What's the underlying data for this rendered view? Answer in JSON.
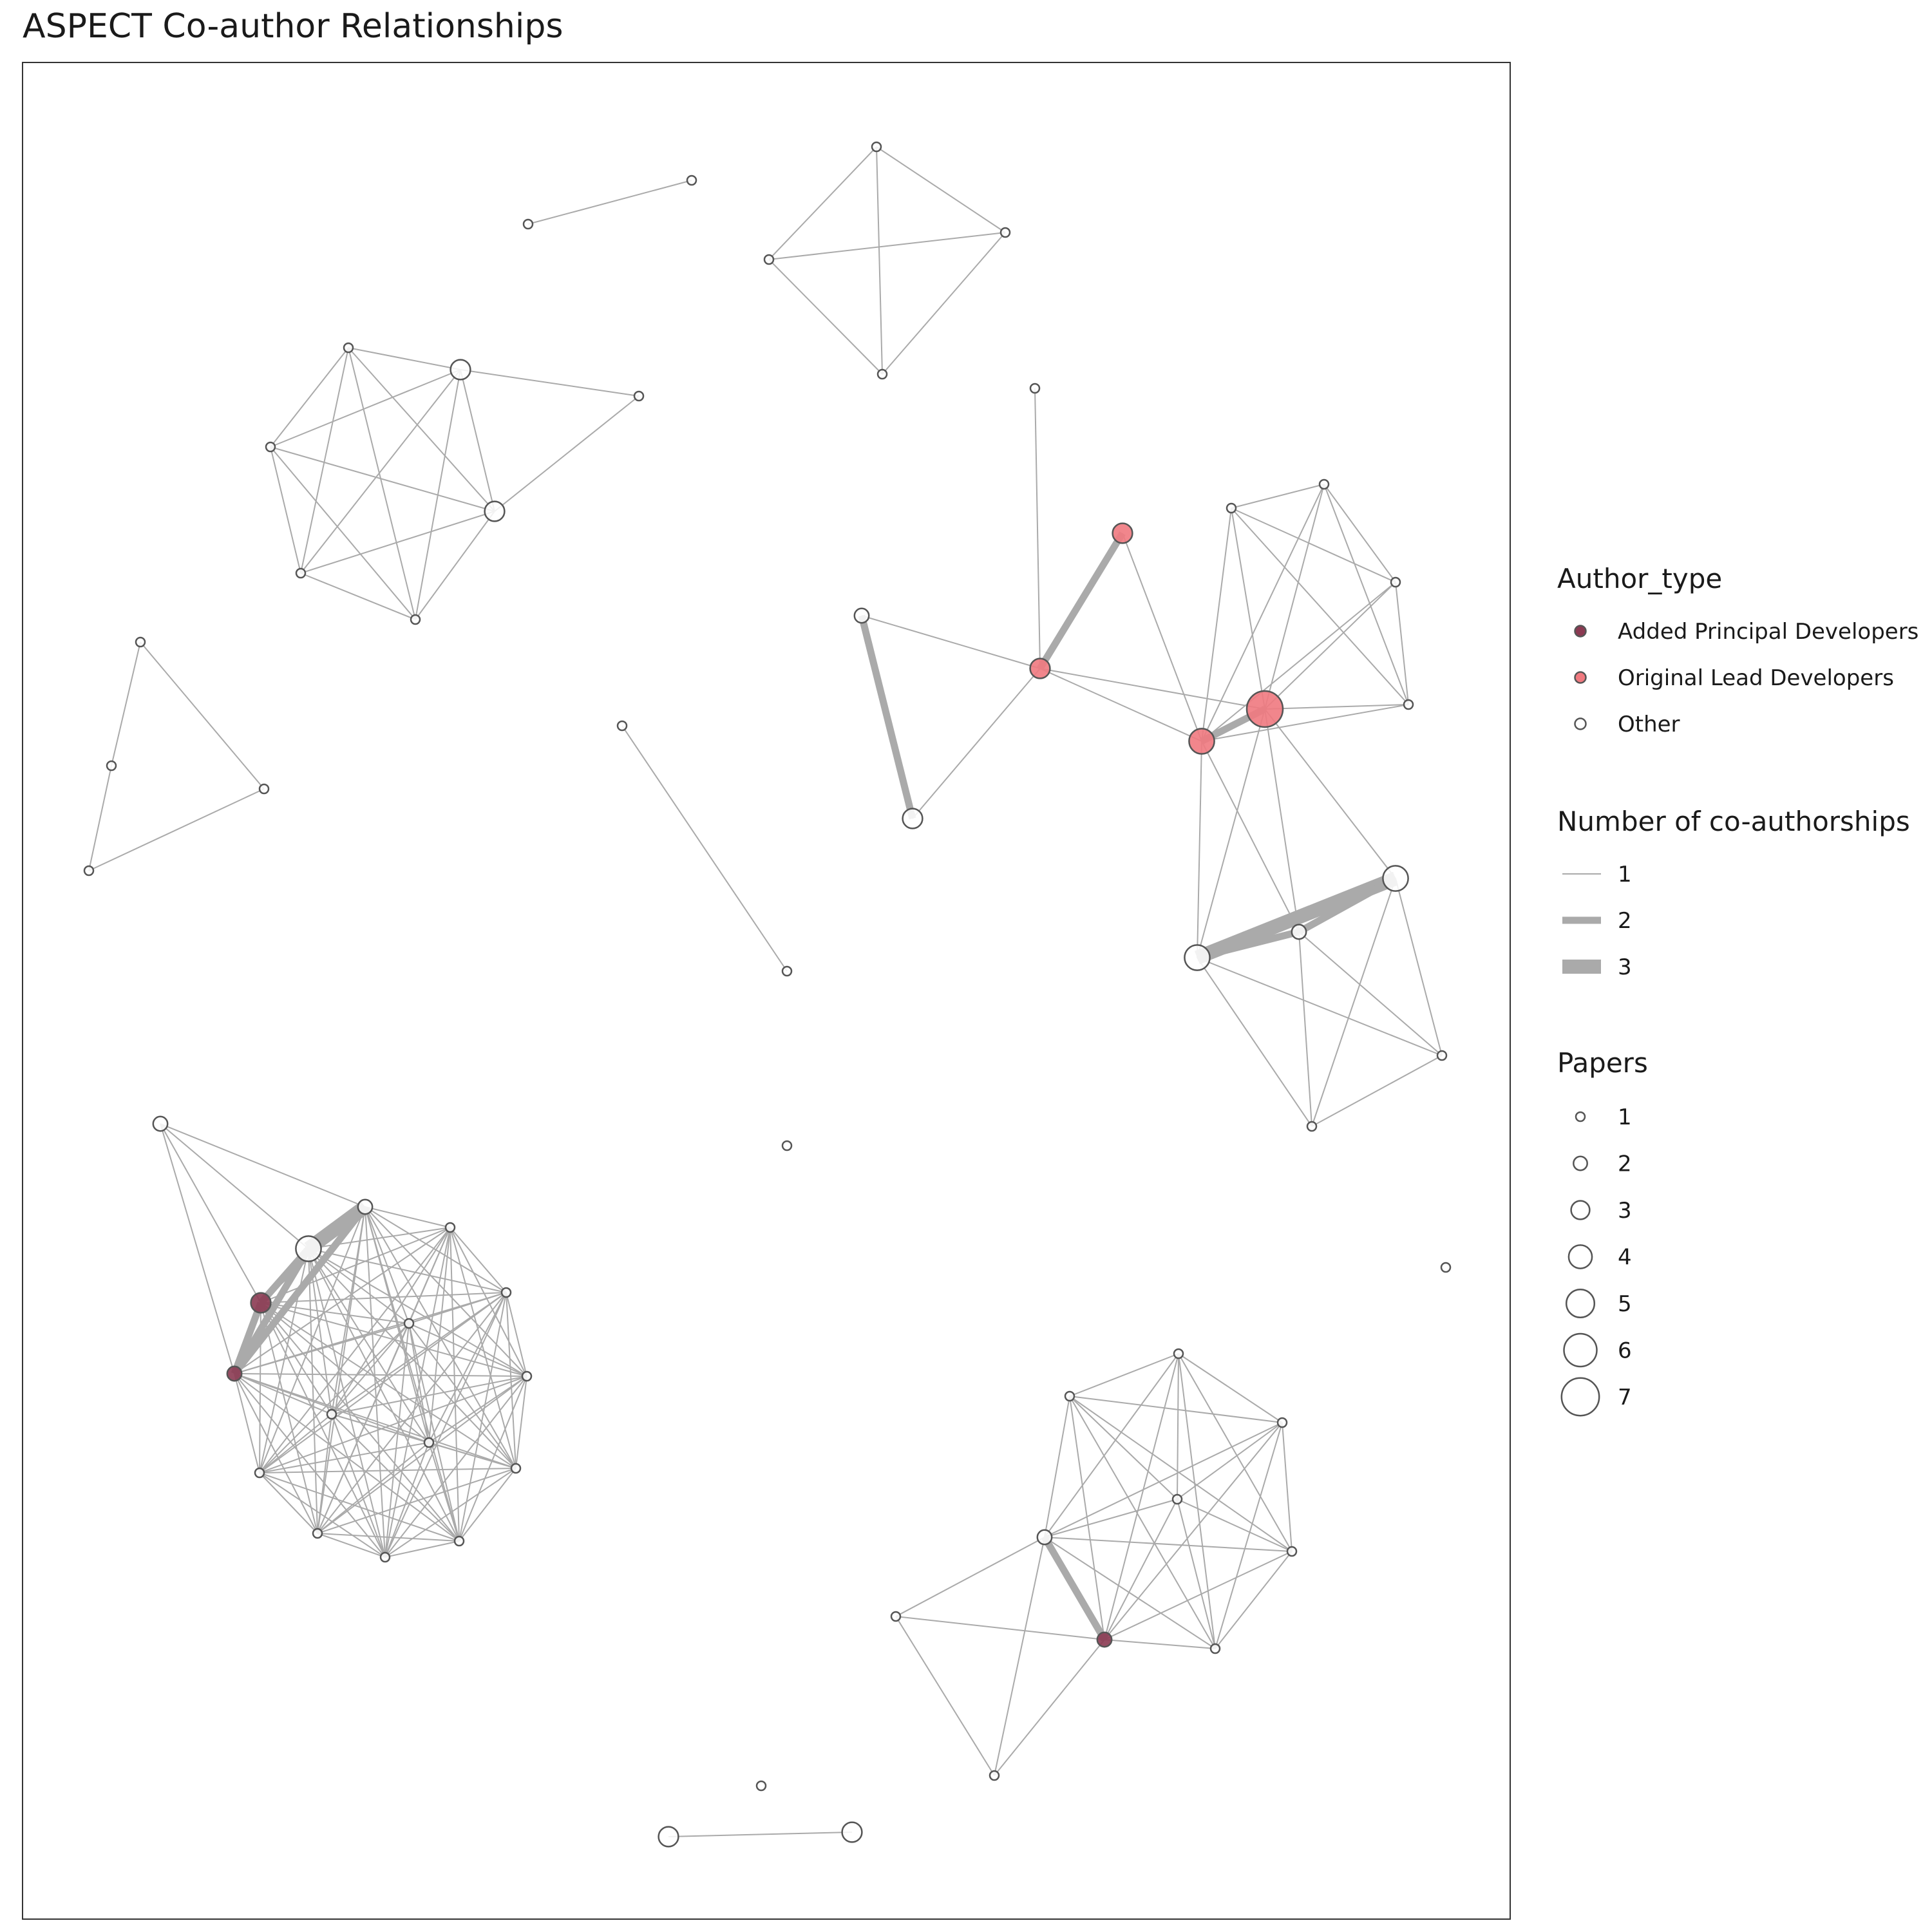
{
  "title": "ASPECT Co-author Relationships",
  "colors": {
    "added_principal": "#8b3a52",
    "original_lead": "#f0797f",
    "other": "#ffffff",
    "node_stroke": "#555555",
    "edge": "#aaaaaa",
    "panel_border": "#333333"
  },
  "legend": {
    "author_type": {
      "title": "Author_type",
      "items": [
        {
          "label": "Added Principal Developers",
          "key": "added_principal"
        },
        {
          "label": "Original Lead Developers",
          "key": "original_lead"
        },
        {
          "label": "Other",
          "key": "other"
        }
      ]
    },
    "coauthorships": {
      "title": "Number of co-authorships",
      "items": [
        {
          "label": "1",
          "value": 1
        },
        {
          "label": "2",
          "value": 2
        },
        {
          "label": "3",
          "value": 3
        }
      ]
    },
    "papers": {
      "title": "Papers",
      "items": [
        {
          "label": "1",
          "value": 1
        },
        {
          "label": "2",
          "value": 2
        },
        {
          "label": "3",
          "value": 3
        },
        {
          "label": "4",
          "value": 4
        },
        {
          "label": "5",
          "value": 5
        },
        {
          "label": "6",
          "value": 6
        },
        {
          "label": "7",
          "value": 7
        }
      ]
    }
  }
}
